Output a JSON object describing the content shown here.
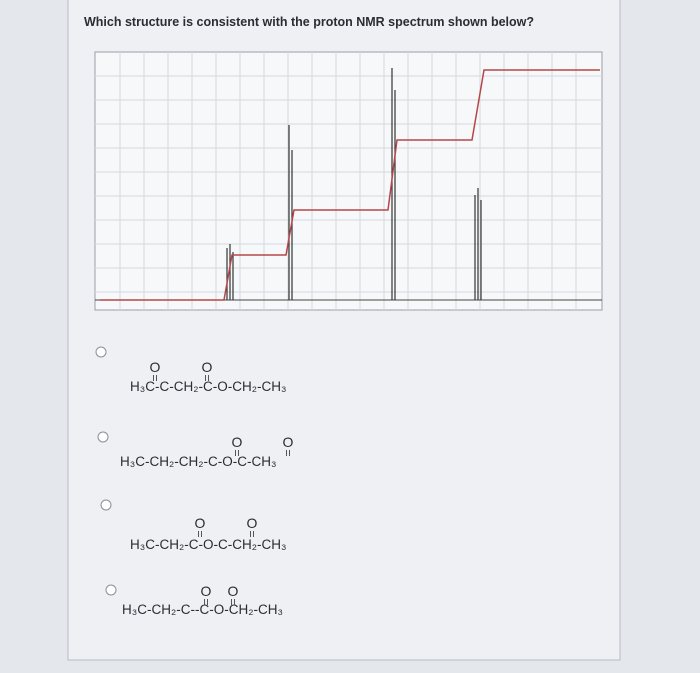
{
  "question": "Which structure is consistent with the proton NMR spectrum shown below?",
  "options": [
    {
      "oxygens": [
        "O",
        "O"
      ],
      "formula": "H₃C-C-CH₂-C-O-CH₂-CH₃"
    },
    {
      "oxygens": [
        "O",
        "O"
      ],
      "formula": "H₃C-CH₂-CH₂-C-O-C-CH₃"
    },
    {
      "oxygens": [
        "O",
        "O"
      ],
      "formula": "H₃C-CH₂-C-O-C-CH₂-CH₃"
    },
    {
      "oxygens": [
        "O",
        "O"
      ],
      "formula": "H₃C-CH₂-C--C-O-CH₂-CH₃"
    }
  ]
}
